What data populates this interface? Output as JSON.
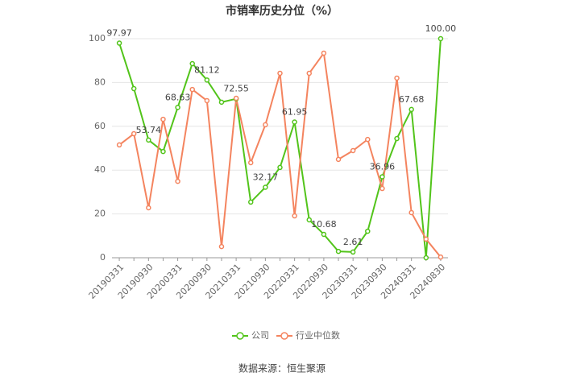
{
  "chart_data": {
    "type": "line",
    "title": "市销率历史分位（%）",
    "categories": [
      "20190331",
      null,
      "20190930",
      null,
      "20200331",
      null,
      "20200930",
      null,
      "20210331",
      null,
      "20210930",
      null,
      "20220331",
      null,
      "20220930",
      null,
      "20230331",
      null,
      "20230930",
      null,
      "20240331",
      null,
      "20240830"
    ],
    "series": [
      {
        "name": "公司",
        "color": "#52c41a",
        "values": [
          97.97,
          77.2,
          53.74,
          48.5,
          68.63,
          88.6,
          81.12,
          71.0,
          72.55,
          25.4,
          32.17,
          41.2,
          61.95,
          17.3,
          10.68,
          2.9,
          2.61,
          12.1,
          36.96,
          54.4,
          67.68,
          0,
          100
        ],
        "value_labels": [
          "97.97",
          null,
          "53.74",
          null,
          "68.63",
          null,
          "81.12",
          null,
          "72.55",
          null,
          "32.17",
          null,
          "61.95",
          null,
          "10.68",
          null,
          "2.61",
          null,
          "36.96",
          null,
          "67.68",
          null,
          "100.00"
        ]
      },
      {
        "name": "行业中位数",
        "color": "#f4845f",
        "values": [
          51.5,
          56.6,
          22.8,
          63.2,
          34.9,
          76.8,
          71.7,
          5.1,
          72.8,
          43.4,
          60.7,
          84.2,
          19.1,
          84.2,
          93.4,
          44.9,
          48.9,
          54.0,
          31.6,
          82.0,
          20.6,
          8.5,
          0.3
        ]
      }
    ],
    "ylim": [
      0,
      100
    ],
    "yticks": [
      0,
      20,
      40,
      60,
      80,
      100
    ],
    "grid": true,
    "source": "数据来源：恒生聚源"
  }
}
